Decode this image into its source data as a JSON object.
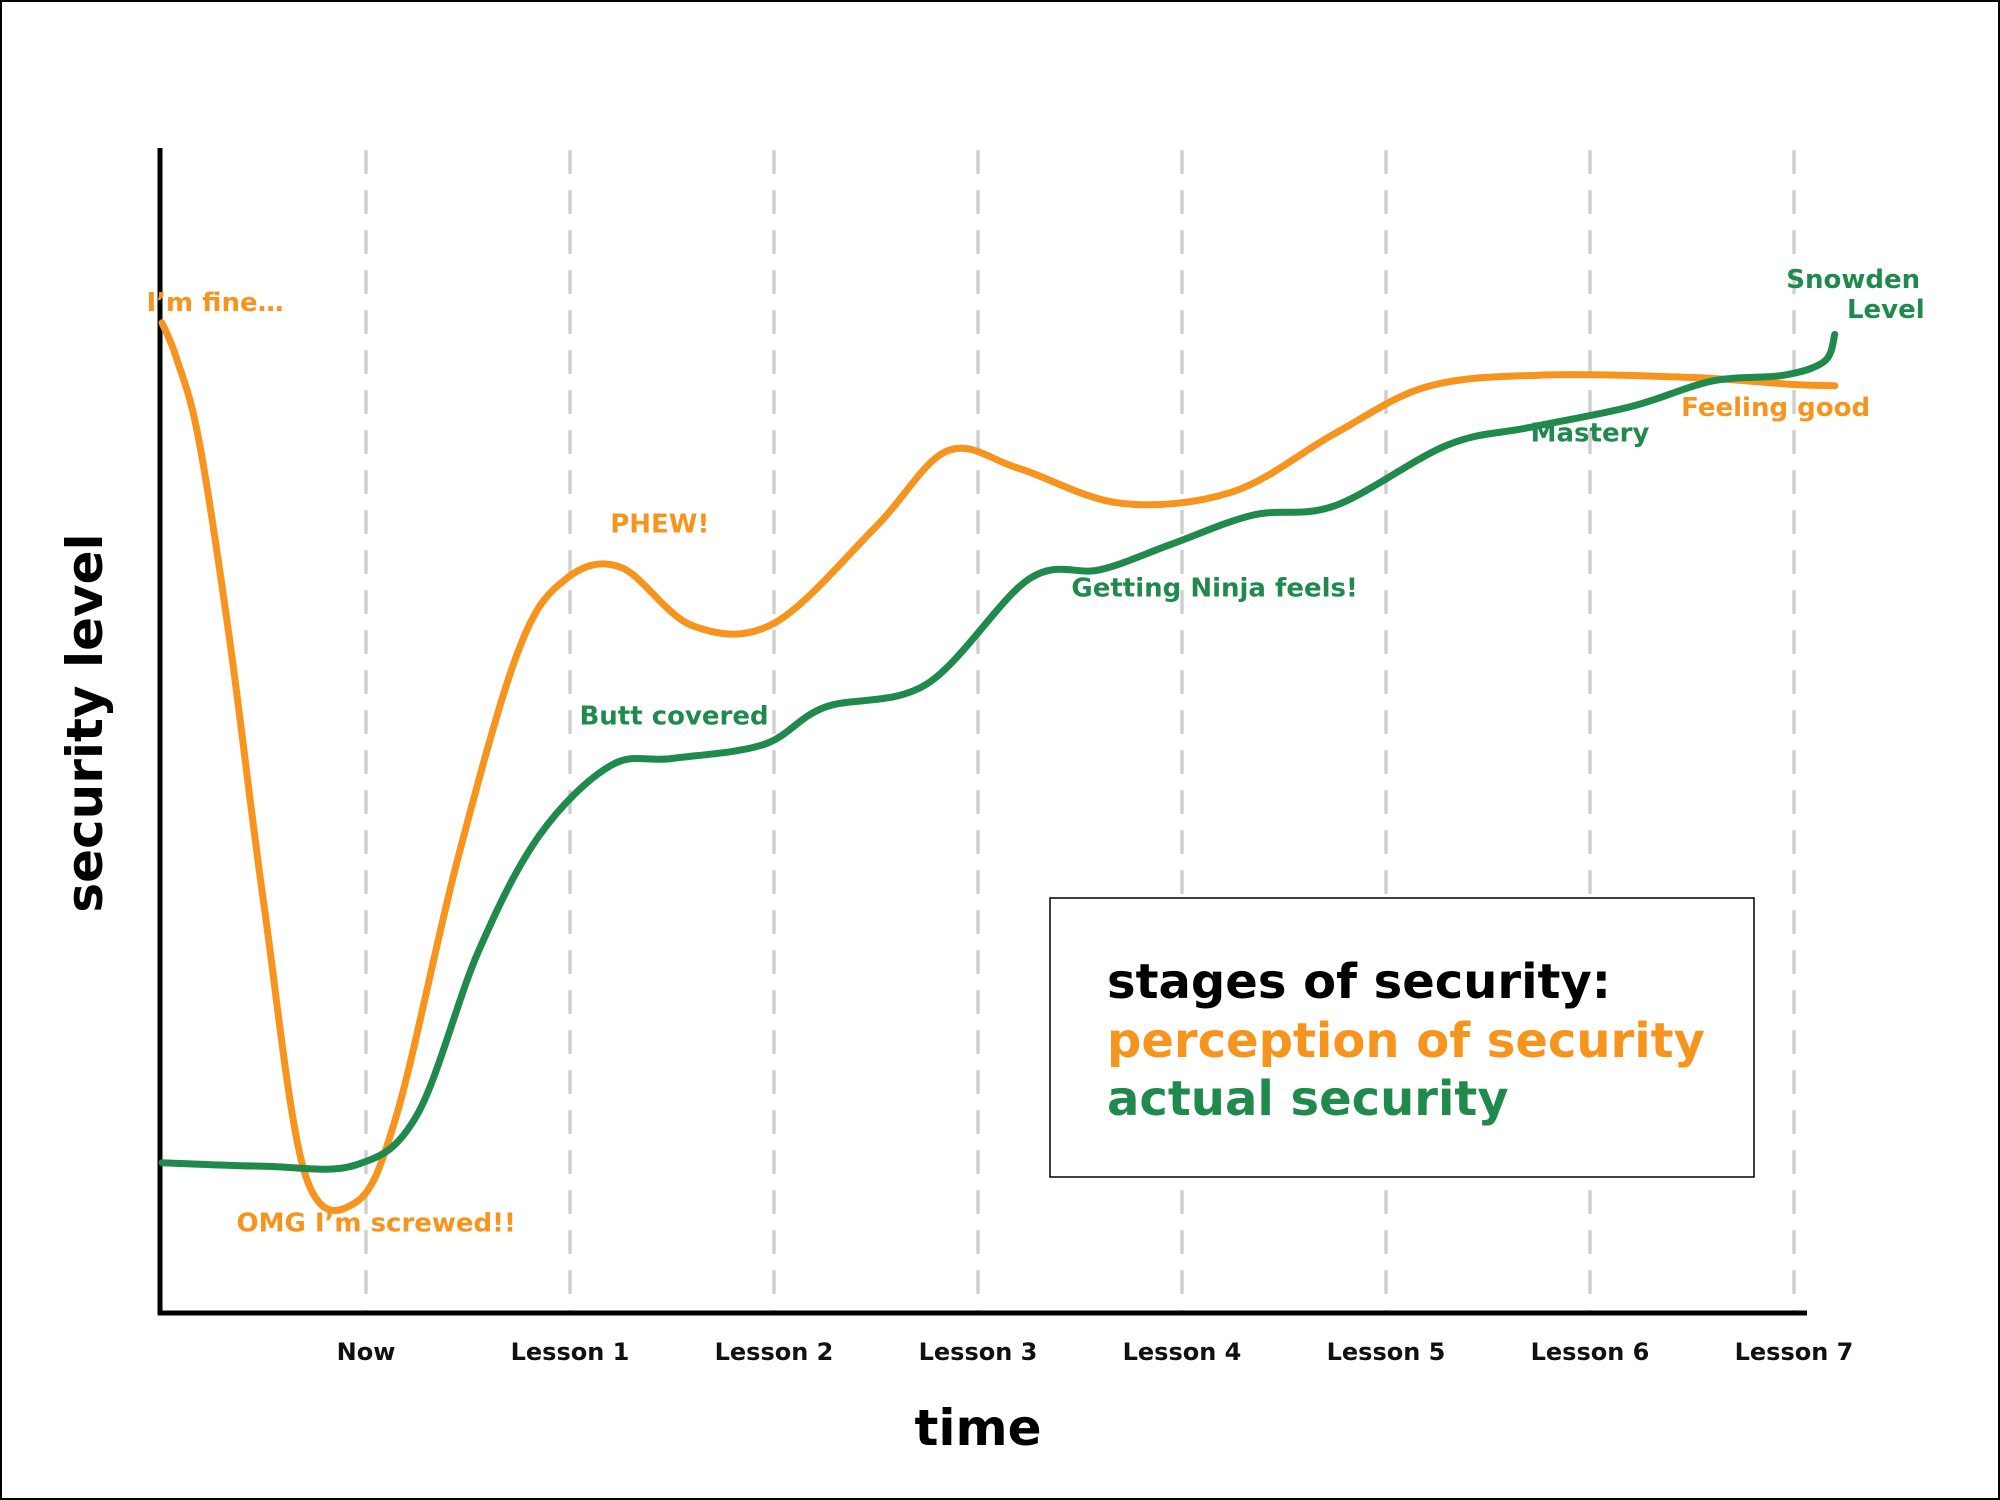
{
  "chart_data": {
    "type": "line",
    "xlabel": "time",
    "ylabel": "security level",
    "categories": [
      "Now",
      "Lesson 1",
      "Lesson 2",
      "Lesson 3",
      "Lesson 4",
      "Lesson 5",
      "Lesson 6",
      "Lesson 7"
    ],
    "xlim": [
      -1,
      7.2
    ],
    "ylim": [
      0,
      100
    ],
    "grid": "vertical dashed lines at each category",
    "legend": {
      "position": "bottom-right",
      "title": "stages of security:",
      "items": [
        {
          "label": "perception of security",
          "color": "#f7941d"
        },
        {
          "label": "actual security",
          "color": "#1f8a4c"
        }
      ]
    },
    "series": [
      {
        "name": "perception of security",
        "color": "#f7941d",
        "points": [
          [
            -1.0,
            85.0
          ],
          [
            -0.93,
            82.0
          ],
          [
            -0.82,
            75.0
          ],
          [
            -0.67,
            58.0
          ],
          [
            -0.5,
            35.0
          ],
          [
            -0.3,
            12.0
          ],
          [
            -0.05,
            9.5
          ],
          [
            0.15,
            17.0
          ],
          [
            0.45,
            39.0
          ],
          [
            0.75,
            57.0
          ],
          [
            0.98,
            63.0
          ],
          [
            1.25,
            64.0
          ],
          [
            1.6,
            59.0
          ],
          [
            2.0,
            59.2
          ],
          [
            2.5,
            67.5
          ],
          [
            2.85,
            74.0
          ],
          [
            3.2,
            72.5
          ],
          [
            3.7,
            69.5
          ],
          [
            4.25,
            70.5
          ],
          [
            4.75,
            75.5
          ],
          [
            5.2,
            79.5
          ],
          [
            5.75,
            80.5
          ],
          [
            6.5,
            80.3
          ],
          [
            7.0,
            79.7
          ],
          [
            7.2,
            79.6
          ]
        ]
      },
      {
        "name": "actual security",
        "color": "#1f8a4c",
        "points": [
          [
            -1.0,
            12.9
          ],
          [
            -0.5,
            12.6
          ],
          [
            -0.05,
            12.7
          ],
          [
            0.25,
            17.0
          ],
          [
            0.55,
            31.0
          ],
          [
            0.85,
            41.0
          ],
          [
            1.2,
            47.0
          ],
          [
            1.5,
            47.6
          ],
          [
            1.95,
            48.8
          ],
          [
            2.25,
            52.0
          ],
          [
            2.75,
            54.0
          ],
          [
            3.25,
            63.0
          ],
          [
            3.6,
            63.8
          ],
          [
            3.95,
            66.0
          ],
          [
            4.35,
            68.5
          ],
          [
            4.75,
            69.3
          ],
          [
            5.3,
            74.5
          ],
          [
            5.7,
            76.0
          ],
          [
            6.2,
            77.8
          ],
          [
            6.6,
            80.0
          ],
          [
            6.95,
            80.5
          ],
          [
            7.15,
            81.7
          ],
          [
            7.2,
            84.0
          ]
        ]
      }
    ],
    "annotations": [
      {
        "text": "I’m fine…",
        "x": -0.74,
        "y": 86.0,
        "color": "#f7941d"
      },
      {
        "text": "OMG I’m screwed!!",
        "x": 0.05,
        "y": 7.0,
        "color": "#f7941d"
      },
      {
        "text": "PHEW!",
        "x": 1.44,
        "y": 67.0,
        "color": "#f7941d"
      },
      {
        "text": "Butt covered",
        "x": 1.51,
        "y": 50.5,
        "color": "#1f8a4c"
      },
      {
        "text": "Getting Ninja feels!",
        "x": 4.16,
        "y": 61.5,
        "color": "#1f8a4c"
      },
      {
        "text": "Mastery",
        "x": 6.0,
        "y": 74.8,
        "color": "#1f8a4c"
      },
      {
        "text": "Feeling good",
        "x": 6.91,
        "y": 77.0,
        "color": "#f7941d"
      },
      {
        "text": "Snowden",
        "x": 7.29,
        "y": 88.0,
        "color": "#1f8a4c"
      },
      {
        "text": "Level",
        "x": 7.45,
        "y": 85.4,
        "color": "#1f8a4c"
      }
    ]
  }
}
